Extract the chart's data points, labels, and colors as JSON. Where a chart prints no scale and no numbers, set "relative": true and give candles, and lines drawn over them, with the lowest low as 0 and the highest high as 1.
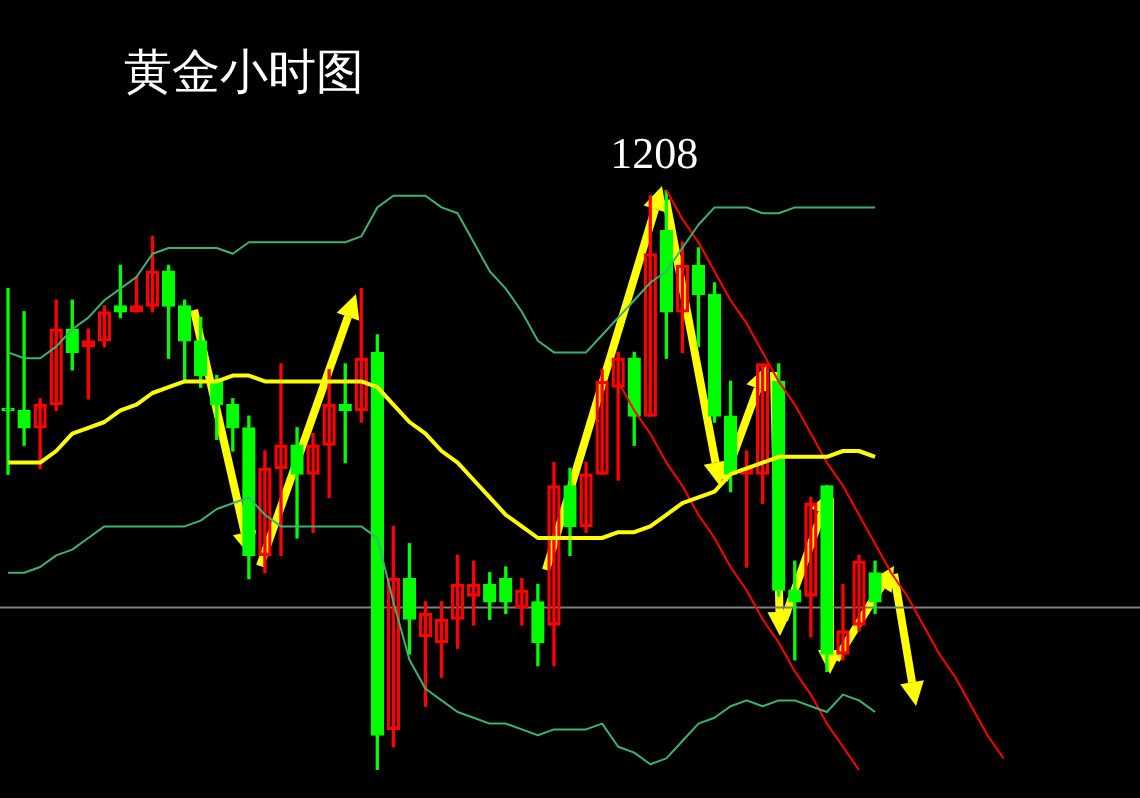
{
  "chart_data": {
    "type": "candlestick",
    "title": "黄金小时图",
    "relative": true,
    "marker": "none",
    "categories": [
      null,
      null,
      null,
      null,
      null,
      null,
      null,
      null,
      null,
      null,
      null,
      null,
      null,
      null,
      null,
      null,
      null,
      null,
      null,
      null,
      null,
      null,
      null,
      null,
      null,
      null,
      null,
      null,
      null,
      null,
      null,
      null,
      null,
      null,
      null,
      null,
      null,
      null,
      null,
      null,
      null,
      null,
      null,
      null,
      null,
      null,
      null,
      null,
      null,
      null,
      null,
      null,
      null,
      null,
      null,
      null,
      null,
      null,
      null,
      null,
      null,
      null,
      null,
      null,
      null,
      null,
      null,
      null,
      null,
      null,
      null
    ],
    "ohlc": [
      [
        0.62,
        0.83,
        0.51,
        0.62
      ],
      [
        0.62,
        0.79,
        0.56,
        0.59
      ],
      [
        0.59,
        0.64,
        0.52,
        0.63
      ],
      [
        0.63,
        0.81,
        0.62,
        0.76
      ],
      [
        0.76,
        0.81,
        0.69,
        0.72
      ],
      [
        0.73,
        0.76,
        0.64,
        0.74
      ],
      [
        0.74,
        0.8,
        0.73,
        0.79
      ],
      [
        0.8,
        0.87,
        0.78,
        0.79
      ],
      [
        0.79,
        0.85,
        0.79,
        0.8
      ],
      [
        0.8,
        0.92,
        0.79,
        0.86
      ],
      [
        0.86,
        0.87,
        0.71,
        0.8
      ],
      [
        0.8,
        0.81,
        0.67,
        0.74
      ],
      [
        0.74,
        0.78,
        0.66,
        0.68
      ],
      [
        0.67,
        0.68,
        0.57,
        0.63
      ],
      [
        0.63,
        0.64,
        0.55,
        0.59
      ],
      [
        0.59,
        0.61,
        0.33,
        0.37
      ],
      [
        0.37,
        0.55,
        0.34,
        0.52
      ],
      [
        0.52,
        0.7,
        0.37,
        0.56
      ],
      [
        0.56,
        0.59,
        0.4,
        0.51
      ],
      [
        0.51,
        0.58,
        0.41,
        0.56
      ],
      [
        0.56,
        0.69,
        0.47,
        0.63
      ],
      [
        0.63,
        0.7,
        0.53,
        0.62
      ],
      [
        0.62,
        0.83,
        0.6,
        0.71
      ],
      [
        0.72,
        0.75,
        0,
        0.06
      ],
      [
        0.07,
        0.42,
        0.04,
        0.33
      ],
      [
        0.33,
        0.39,
        0.2,
        0.26
      ],
      [
        0.23,
        0.29,
        0.11,
        0.27
      ],
      [
        0.22,
        0.29,
        0.16,
        0.26
      ],
      [
        0.26,
        0.37,
        0.21,
        0.32
      ],
      [
        0.3,
        0.36,
        0.25,
        0.32
      ],
      [
        0.32,
        0.34,
        0.26,
        0.29
      ],
      [
        0.33,
        0.35,
        0.27,
        0.29
      ],
      [
        0.28,
        0.33,
        0.25,
        0.31
      ],
      [
        0.29,
        0.32,
        0.18,
        0.22
      ],
      [
        0.25,
        0.53,
        0.18,
        0.49
      ],
      [
        0.49,
        0.52,
        0.37,
        0.42
      ],
      [
        0.42,
        0.53,
        0.41,
        0.51
      ],
      [
        0.51,
        0.69,
        0.51,
        0.67
      ],
      [
        0.66,
        0.72,
        0.5,
        0.71
      ],
      [
        0.71,
        0.72,
        0.56,
        0.61
      ],
      [
        0.61,
        0.99,
        0.61,
        0.89
      ],
      [
        0.93,
        1,
        0.71,
        0.79
      ],
      [
        0.79,
        0.91,
        0.72,
        0.87
      ],
      [
        0.87,
        0.9,
        0.73,
        0.82
      ],
      [
        0.82,
        0.84,
        0.6,
        0.61
      ],
      [
        0.61,
        0.67,
        0.48,
        0.51
      ],
      [
        0.51,
        0.55,
        0.35,
        0.52
      ],
      [
        0.51,
        0.7,
        0.46,
        0.7
      ],
      [
        0.67,
        0.7,
        0.3,
        0.31
      ],
      [
        0.31,
        0.36,
        0.19,
        0.29
      ],
      [
        0.3,
        0.47,
        0.23,
        0.46
      ],
      [
        0.49,
        0.49,
        0.17,
        0.2
      ],
      [
        0.2,
        0.32,
        0.19,
        0.24
      ],
      [
        0.25,
        0.37,
        0.24,
        0.36
      ],
      [
        0.34,
        0.36,
        0.27,
        0.29
      ],
      null,
      null,
      null,
      null,
      null,
      null,
      null,
      null,
      null,
      null,
      null,
      null,
      null,
      null,
      null,
      null
    ],
    "colors": [
      "#00ff00",
      "#00ff00",
      "#ff0000",
      "#ff0000",
      "#00ff00",
      "#ff0000",
      "#ff0000",
      "#00ff00",
      "#ff0000",
      "#ff0000",
      "#00ff00",
      "#00ff00",
      "#00ff00",
      "#00ff00",
      "#00ff00",
      "#00ff00",
      "#ff0000",
      "#ff0000",
      "#00ff00",
      "#ff0000",
      "#ff0000",
      "#00ff00",
      "#ff0000",
      "#00ff00",
      "#ff0000",
      "#00ff00",
      "#ff0000",
      "#ff0000",
      "#ff0000",
      "#ff0000",
      "#00ff00",
      "#00ff00",
      "#ff0000",
      "#00ff00",
      "#ff0000",
      "#00ff00",
      "#ff0000",
      "#ff0000",
      "#ff0000",
      "#00ff00",
      "#ff0000",
      "#00ff00",
      "#ff0000",
      "#00ff00",
      "#00ff00",
      "#00ff00",
      "#ff0000",
      "#ff0000",
      "#00ff00",
      "#00ff00",
      "#ff0000",
      "#00ff00",
      "#ff0000",
      "#ff0000",
      "#00ff00",
      null,
      null,
      null,
      null,
      null,
      null,
      null,
      null,
      null,
      null,
      null,
      null,
      null,
      null,
      null,
      null
    ],
    "series": [
      {
        "type": "line",
        "color": "#3cb371",
        "values": [
          0.72,
          0.71,
          0.71,
          0.73,
          0.76,
          0.78,
          0.81,
          0.83,
          0.85,
          0.89,
          0.9,
          0.9,
          0.9,
          0.9,
          0.89,
          0.91,
          0.91,
          0.91,
          0.91,
          0.91,
          0.91,
          0.91,
          0.92,
          0.97,
          0.99,
          0.99,
          0.99,
          0.97,
          0.96,
          0.91,
          0.86,
          0.83,
          0.79,
          0.74,
          0.72,
          0.72,
          0.72,
          0.75,
          0.78,
          0.81,
          0.84,
          0.86,
          0.9,
          0.94,
          0.97,
          0.97,
          0.97,
          0.96,
          0.96,
          0.97,
          0.97,
          0.97,
          0.97,
          0.97,
          0.97,
          null,
          null,
          null,
          null,
          null,
          null,
          null,
          null,
          null,
          null,
          null,
          null,
          null,
          null,
          null,
          null
        ]
      },
      {
        "type": "line",
        "color": "#ffff00",
        "values": [
          0.53,
          0.53,
          0.53,
          0.55,
          0.58,
          0.59,
          0.6,
          0.62,
          0.63,
          0.65,
          0.66,
          0.67,
          0.67,
          0.67,
          0.68,
          0.68,
          0.67,
          0.67,
          0.67,
          0.67,
          0.67,
          0.67,
          0.67,
          0.66,
          0.63,
          0.6,
          0.58,
          0.55,
          0.53,
          0.5,
          0.47,
          0.44,
          0.42,
          0.4,
          0.4,
          0.4,
          0.4,
          0.4,
          0.41,
          0.41,
          0.42,
          0.44,
          0.46,
          0.47,
          0.48,
          0.51,
          0.52,
          0.53,
          0.54,
          0.54,
          0.54,
          0.54,
          0.55,
          0.55,
          0.54,
          null,
          null,
          null,
          null,
          null,
          null,
          null,
          null,
          null,
          null,
          null,
          null,
          null,
          null,
          null,
          null
        ]
      },
      {
        "type": "line",
        "color": "#3cb371",
        "values": [
          0.34,
          0.34,
          0.35,
          0.37,
          0.38,
          0.4,
          0.42,
          0.42,
          0.42,
          0.42,
          0.42,
          0.42,
          0.43,
          0.45,
          0.46,
          0.47,
          0.44,
          0.42,
          0.42,
          0.42,
          0.42,
          0.42,
          0.42,
          0.4,
          0.29,
          0.19,
          0.14,
          0.12,
          0.1,
          0.09,
          0.08,
          0.08,
          0.07,
          0.06,
          0.07,
          0.07,
          0.07,
          0.08,
          0.04,
          0.03,
          0.01,
          0.02,
          0.05,
          0.08,
          0.09,
          0.11,
          0.12,
          0.11,
          0.12,
          0.12,
          0.11,
          0.1,
          0.13,
          0.12,
          0.1,
          null,
          null,
          null,
          null,
          null,
          null,
          null,
          null,
          null,
          null,
          null,
          null,
          null,
          null,
          null,
          null
        ]
      },
      {
        "type": "line",
        "color": "#ff0000",
        "values": [
          null,
          null,
          null,
          null,
          null,
          null,
          null,
          null,
          null,
          null,
          null,
          null,
          null,
          null,
          null,
          null,
          null,
          null,
          null,
          null,
          null,
          null,
          null,
          null,
          null,
          null,
          null,
          null,
          null,
          null,
          null,
          null,
          null,
          null,
          null,
          null,
          null,
          null,
          null,
          null,
          null,
          1,
          0.95,
          0.91,
          0.86,
          0.81,
          0.77,
          0.72,
          0.67,
          0.63,
          0.58,
          0.53,
          0.49,
          0.44,
          0.39,
          0.34,
          0.3,
          0.25,
          0.2,
          0.16,
          0.11,
          0.06,
          0.02,
          null,
          null,
          null,
          null,
          null,
          null,
          null,
          null
        ]
      },
      {
        "type": "line",
        "color": "#ff0000",
        "values": [
          null,
          null,
          null,
          null,
          null,
          null,
          null,
          null,
          null,
          null,
          null,
          null,
          null,
          null,
          null,
          null,
          null,
          null,
          null,
          null,
          null,
          null,
          null,
          null,
          null,
          null,
          null,
          null,
          null,
          null,
          null,
          null,
          null,
          null,
          null,
          null,
          null,
          null,
          0.67,
          0.62,
          0.58,
          0.53,
          0.49,
          0.44,
          0.4,
          0.35,
          0.31,
          0.26,
          0.22,
          0.17,
          0.13,
          0.08,
          0.04,
          0,
          null,
          null,
          null,
          null,
          null,
          null,
          null,
          null,
          null,
          null,
          null,
          null,
          null,
          null,
          null,
          null,
          null
        ]
      }
    ],
    "ref_lines": [
      {
        "axis": "y",
        "value": 0.28,
        "color": "#808080"
      }
    ],
    "annotations": [
      {
        "text": "1208",
        "y": 1
      }
    ]
  }
}
